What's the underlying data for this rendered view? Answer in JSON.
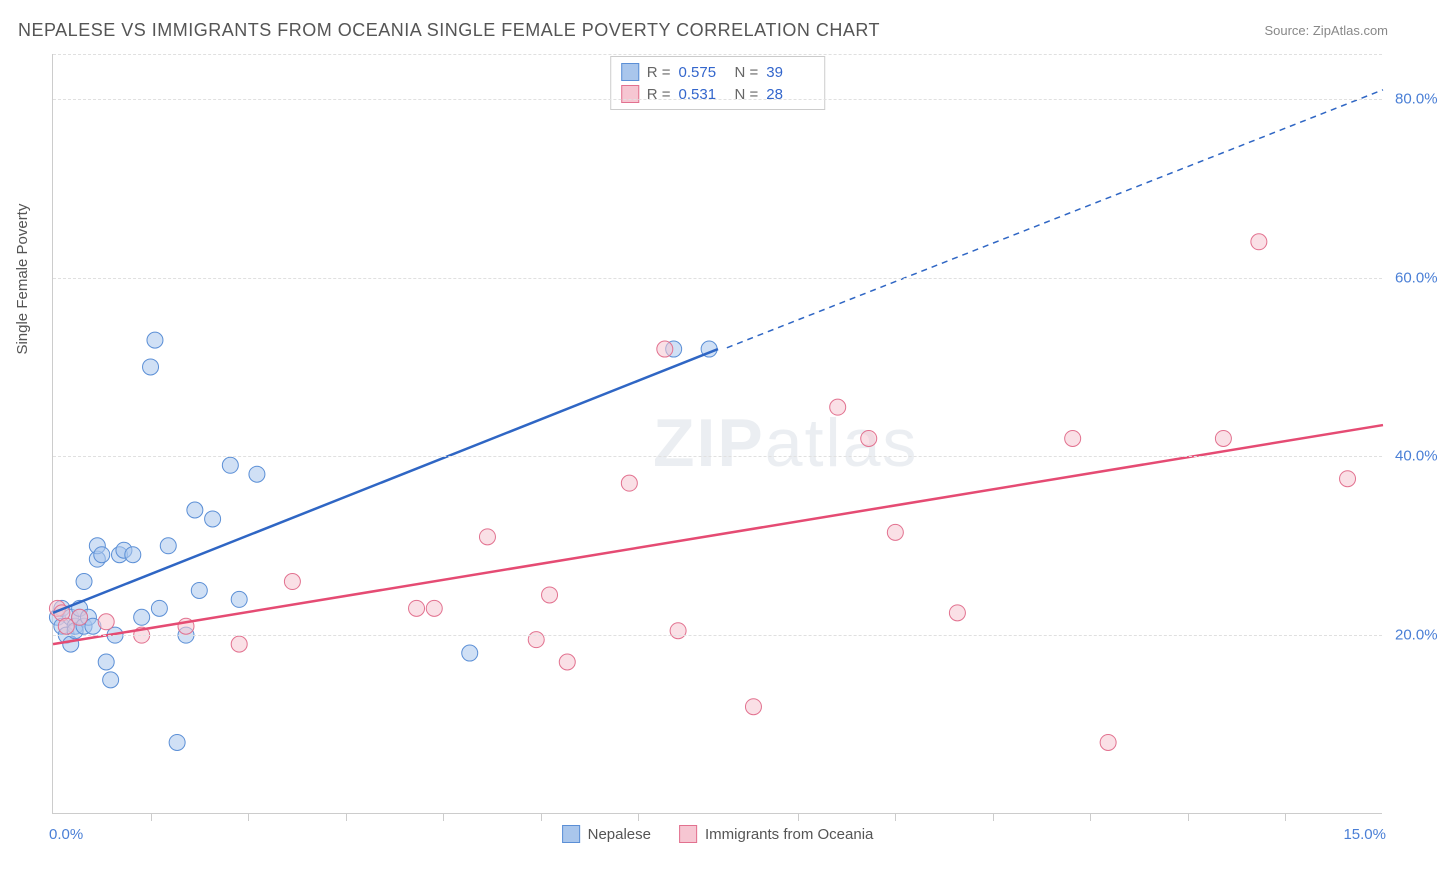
{
  "title": "NEPALESE VS IMMIGRANTS FROM OCEANIA SINGLE FEMALE POVERTY CORRELATION CHART",
  "source_label": "Source: ZipAtlas.com",
  "y_axis_label": "Single Female Poverty",
  "watermark": "ZIPatlas",
  "chart": {
    "type": "scatter",
    "xlim": [
      0,
      15
    ],
    "ylim": [
      0,
      85
    ],
    "x_ticks": [
      0,
      7.5,
      15
    ],
    "x_tick_labels": [
      "0.0%",
      "",
      "15.0%"
    ],
    "x_minor_ticks_at": [
      1.1,
      2.2,
      3.3,
      4.4,
      5.5,
      6.6,
      8.4,
      9.5,
      10.6,
      11.7,
      12.8,
      13.9
    ],
    "y_gridlines": [
      20,
      40,
      60,
      80,
      85
    ],
    "y_tick_labels": {
      "20": "20.0%",
      "40": "40.0%",
      "60": "60.0%",
      "80": "80.0%"
    },
    "background_color": "#ffffff",
    "grid_color": "#e0e0e0",
    "point_radius": 8,
    "point_opacity": 0.55,
    "series": [
      {
        "id": "nepalese",
        "label": "Nepalese",
        "fill_color": "#a9c6ec",
        "stroke_color": "#5b8fd6",
        "line_color": "#2f66c4",
        "line_width": 2.5,
        "R": "0.575",
        "N": "39",
        "trend": {
          "x1": 0,
          "y1": 22.5,
          "x2": 7.5,
          "y2": 52,
          "ext_x2": 15,
          "ext_y2": 81,
          "dash_from_x": 7.6
        },
        "points": [
          [
            0.05,
            22
          ],
          [
            0.1,
            21
          ],
          [
            0.1,
            23
          ],
          [
            0.15,
            20
          ],
          [
            0.2,
            19
          ],
          [
            0.2,
            22
          ],
          [
            0.25,
            21
          ],
          [
            0.25,
            20.5
          ],
          [
            0.3,
            22
          ],
          [
            0.3,
            23
          ],
          [
            0.35,
            26
          ],
          [
            0.35,
            21
          ],
          [
            0.4,
            22
          ],
          [
            0.45,
            21
          ],
          [
            0.5,
            28.5
          ],
          [
            0.5,
            30
          ],
          [
            0.55,
            29
          ],
          [
            0.6,
            17
          ],
          [
            0.65,
            15
          ],
          [
            0.7,
            20
          ],
          [
            0.75,
            29
          ],
          [
            0.8,
            29.5
          ],
          [
            0.9,
            29
          ],
          [
            1.0,
            22
          ],
          [
            1.1,
            50
          ],
          [
            1.15,
            53
          ],
          [
            1.2,
            23
          ],
          [
            1.3,
            30
          ],
          [
            1.4,
            8
          ],
          [
            1.5,
            20
          ],
          [
            1.6,
            34
          ],
          [
            1.65,
            25
          ],
          [
            1.8,
            33
          ],
          [
            2.0,
            39
          ],
          [
            2.1,
            24
          ],
          [
            2.3,
            38
          ],
          [
            4.7,
            18
          ],
          [
            7.0,
            52
          ],
          [
            7.4,
            52
          ]
        ]
      },
      {
        "id": "oceania",
        "label": "Immigrants from Oceania",
        "fill_color": "#f6c6d2",
        "stroke_color": "#e2718f",
        "line_color": "#e54b73",
        "line_width": 2.5,
        "R": "0.531",
        "N": "28",
        "trend": {
          "x1": 0,
          "y1": 19,
          "x2": 15,
          "y2": 43.5
        },
        "points": [
          [
            0.05,
            23
          ],
          [
            0.1,
            22.5
          ],
          [
            0.15,
            21
          ],
          [
            0.3,
            22
          ],
          [
            0.6,
            21.5
          ],
          [
            1.0,
            20
          ],
          [
            1.5,
            21
          ],
          [
            2.1,
            19
          ],
          [
            2.7,
            26
          ],
          [
            4.1,
            23
          ],
          [
            4.3,
            23
          ],
          [
            4.9,
            31
          ],
          [
            5.45,
            19.5
          ],
          [
            5.6,
            24.5
          ],
          [
            5.8,
            17
          ],
          [
            6.5,
            37
          ],
          [
            6.9,
            52
          ],
          [
            7.05,
            20.5
          ],
          [
            7.9,
            12
          ],
          [
            8.85,
            45.5
          ],
          [
            9.2,
            42
          ],
          [
            9.5,
            31.5
          ],
          [
            10.2,
            22.5
          ],
          [
            11.5,
            42
          ],
          [
            11.9,
            8
          ],
          [
            13.2,
            42
          ],
          [
            13.6,
            64
          ],
          [
            14.6,
            37.5
          ]
        ]
      }
    ]
  },
  "stats_legend": {
    "rows": [
      {
        "swatch_fill": "#a9c6ec",
        "swatch_stroke": "#5b8fd6",
        "R": "0.575",
        "N": "39"
      },
      {
        "swatch_fill": "#f6c6d2",
        "swatch_stroke": "#e2718f",
        "R": "0.531",
        "N": "28"
      }
    ]
  }
}
